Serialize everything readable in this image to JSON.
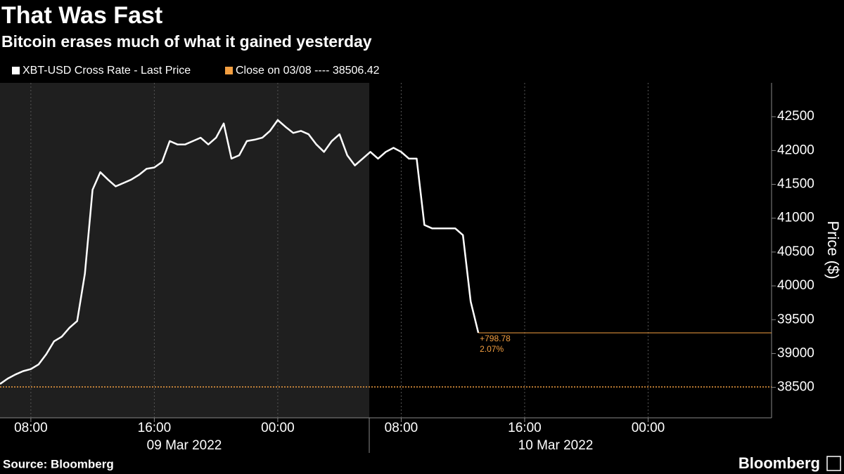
{
  "chart_data": {
    "type": "line",
    "title": "That Was Fast",
    "subtitle": "Bitcoin erases much of what it gained yesterday",
    "y_label": "Price ($)",
    "source": "Source: Bloomberg",
    "brand": "Bloomberg",
    "x": [
      "2022-03-09 06:00",
      "2022-03-09 06:30",
      "2022-03-09 07:00",
      "2022-03-09 07:30",
      "2022-03-09 08:00",
      "2022-03-09 08:30",
      "2022-03-09 09:00",
      "2022-03-09 09:30",
      "2022-03-09 10:00",
      "2022-03-09 10:30",
      "2022-03-09 11:00",
      "2022-03-09 11:30",
      "2022-03-09 12:00",
      "2022-03-09 12:30",
      "2022-03-09 13:00",
      "2022-03-09 13:30",
      "2022-03-09 14:00",
      "2022-03-09 14:30",
      "2022-03-09 15:00",
      "2022-03-09 15:30",
      "2022-03-09 16:00",
      "2022-03-09 16:30",
      "2022-03-09 17:00",
      "2022-03-09 17:30",
      "2022-03-09 18:00",
      "2022-03-09 18:30",
      "2022-03-09 19:00",
      "2022-03-09 19:30",
      "2022-03-09 20:00",
      "2022-03-09 20:30",
      "2022-03-09 21:00",
      "2022-03-09 21:30",
      "2022-03-09 22:00",
      "2022-03-09 22:30",
      "2022-03-09 23:00",
      "2022-03-09 23:30",
      "2022-03-10 00:00",
      "2022-03-10 00:30",
      "2022-03-10 01:00",
      "2022-03-10 01:30",
      "2022-03-10 02:00",
      "2022-03-10 02:30",
      "2022-03-10 03:00",
      "2022-03-10 03:30",
      "2022-03-10 04:00",
      "2022-03-10 04:30",
      "2022-03-10 05:00",
      "2022-03-10 05:30",
      "2022-03-10 06:00",
      "2022-03-10 06:30",
      "2022-03-10 07:00",
      "2022-03-10 07:30",
      "2022-03-10 08:00",
      "2022-03-10 08:30",
      "2022-03-10 09:00",
      "2022-03-10 09:30",
      "2022-03-10 10:00",
      "2022-03-10 10:30",
      "2022-03-10 11:00",
      "2022-03-10 11:30",
      "2022-03-10 12:00",
      "2022-03-10 12:30",
      "2022-03-10 13:00"
    ],
    "series": [
      {
        "name": "XBT-USD Cross Rate - Last Price",
        "color": "#ffffff",
        "values": [
          38550,
          38630,
          38690,
          38740,
          38770,
          38840,
          38990,
          39180,
          39250,
          39380,
          39480,
          40180,
          41420,
          41680,
          41570,
          41470,
          41520,
          41570,
          41640,
          41730,
          41750,
          41830,
          42140,
          42090,
          42090,
          42140,
          42190,
          42090,
          42190,
          42400,
          41880,
          41930,
          42140,
          42160,
          42190,
          42290,
          42450,
          42350,
          42260,
          42290,
          42240,
          42090,
          41980,
          42140,
          42240,
          41930,
          41780,
          41880,
          41980,
          41880,
          41980,
          42040,
          41980,
          41880,
          41880,
          40900,
          40850,
          40850,
          40850,
          40850,
          40750,
          39770,
          39305.2
        ]
      }
    ],
    "reference_line": {
      "name": "Close on 03/08 ---- 38506.42",
      "value": 38506.42,
      "color": "#f39f41"
    },
    "annotations": [
      "+798.78",
      "2.07%"
    ],
    "date_labels": [
      "09 Mar 2022",
      "10 Mar 2022"
    ],
    "xlim": [
      "2022-03-09 06:00",
      "2022-03-11 08:00"
    ],
    "xticks": [
      {
        "value": "2022-03-09 08:00",
        "label": "08:00"
      },
      {
        "value": "2022-03-09 16:00",
        "label": "16:00"
      },
      {
        "value": "2022-03-10 00:00",
        "label": "00:00"
      },
      {
        "value": "2022-03-10 08:00",
        "label": "08:00"
      },
      {
        "value": "2022-03-10 16:00",
        "label": "16:00"
      },
      {
        "value": "2022-03-11 00:00",
        "label": "00:00"
      }
    ],
    "ylim": [
      38050,
      43000
    ],
    "yticks": [
      38500,
      39000,
      39500,
      40000,
      40500,
      41000,
      41500,
      42000,
      42500
    ],
    "grid": true
  }
}
